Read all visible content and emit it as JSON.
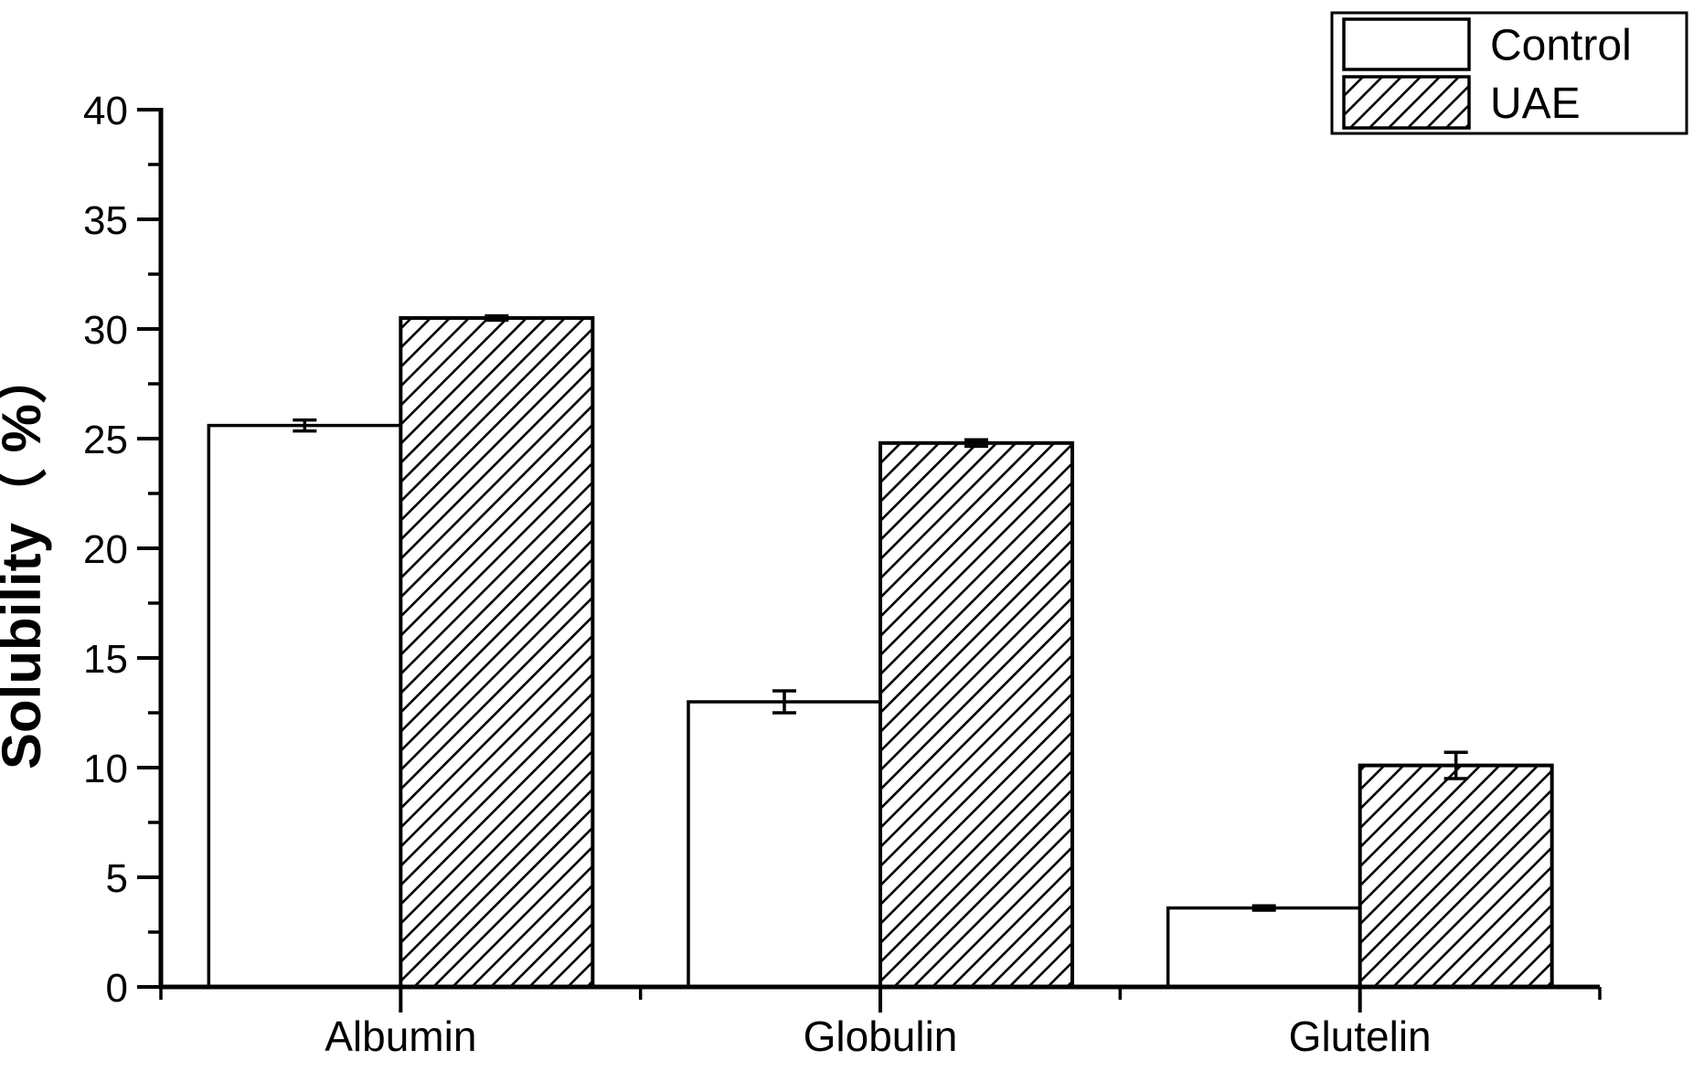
{
  "chart_data": {
    "type": "bar",
    "title": "",
    "categories": [
      "Albumin",
      "Globulin",
      "Glutelin"
    ],
    "series": [
      {
        "name": "Control",
        "fill": "white",
        "values": [
          25.6,
          13.0,
          3.6
        ],
        "errors": [
          0.25,
          0.5,
          0.1
        ]
      },
      {
        "name": "UAE",
        "fill": "diagonal-hatch",
        "values": [
          30.5,
          24.8,
          10.1
        ],
        "errors": [
          0.1,
          0.15,
          0.6
        ]
      }
    ],
    "xlabel": "",
    "ylabel": "Solubility（ %）",
    "ylim": [
      0,
      40
    ],
    "yticks": [
      0,
      5,
      10,
      15,
      20,
      25,
      30,
      35,
      40
    ],
    "ytick_minor_step": 2.5,
    "grid": false,
    "legend": {
      "position": "top-right",
      "border": true,
      "entries": [
        "Control",
        "UAE"
      ]
    },
    "colors": {
      "foreground": "#000000",
      "background": "#ffffff"
    }
  }
}
